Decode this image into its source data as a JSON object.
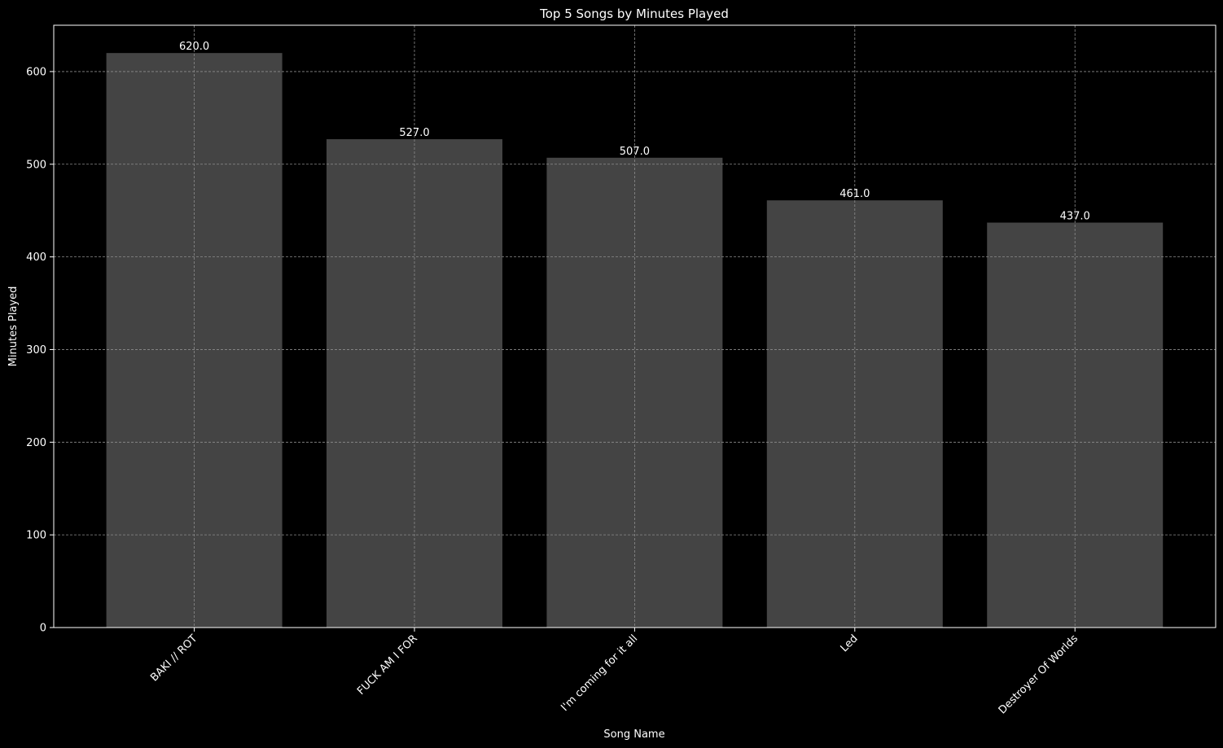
{
  "chart_data": {
    "type": "bar",
    "title": "Top 5 Songs by Minutes Played",
    "xlabel": "Song Name",
    "ylabel": "Minutes Played",
    "categories": [
      "BAKI // ROT",
      "FUCK AM I FOR",
      "I'm coming for it all",
      "Led",
      "Destroyer Of Worlds"
    ],
    "values": [
      620.0,
      527.0,
      507.0,
      461.0,
      437.0
    ],
    "value_labels": [
      "620.0",
      "527.0",
      "507.0",
      "461.0",
      "437.0"
    ],
    "ylim": [
      0,
      650
    ],
    "yticks": [
      0,
      100,
      200,
      300,
      400,
      500,
      600
    ],
    "grid": true,
    "colors": {
      "background": "#000000",
      "bar": "#444444",
      "grid": "#8c8c8c",
      "text": "#ffffff",
      "axes": "#ffffff"
    }
  }
}
